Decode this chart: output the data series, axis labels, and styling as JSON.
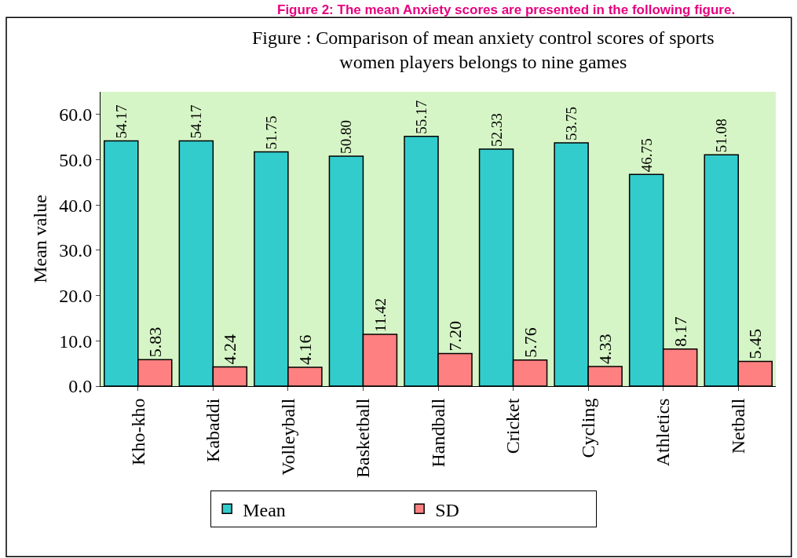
{
  "chart_data": {
    "type": "bar",
    "title": "Figure : Comparison of mean anxiety control scores of sports\nwomen players belongs to nine games",
    "ylabel": "Mean value",
    "annotations": [
      "Figure 2: The mean Anxiety scores are presented in the following figure."
    ],
    "categories": [
      "Kho-kho",
      "Kabaddi",
      "Volleyball",
      "Basketball",
      "Handball",
      "Cricket",
      "Cycling",
      "Athletics",
      "Netball"
    ],
    "series": [
      {
        "name": "Mean",
        "color": "#33cccc",
        "values": [
          54.17,
          54.17,
          51.75,
          50.8,
          55.17,
          52.33,
          53.75,
          46.75,
          51.08
        ],
        "value_labels": [
          "54.17",
          "54.17",
          "51.75",
          "50.80",
          "55.17",
          "52.33",
          "53.75",
          "46.75",
          "51.08"
        ]
      },
      {
        "name": "SD",
        "color": "#ff8080",
        "values": [
          5.83,
          4.24,
          4.16,
          11.42,
          7.2,
          5.76,
          4.33,
          8.17,
          5.45
        ],
        "value_labels": [
          "5.83",
          "4.24",
          "4.16",
          "11.42",
          "7.20",
          "5.76",
          "4.33",
          "8.17",
          "5.45"
        ]
      }
    ],
    "ylim": [
      0,
      65
    ],
    "yticks": [
      {
        "value": 0,
        "label": "0.0"
      },
      {
        "value": 10,
        "label": "10.0"
      },
      {
        "value": 20,
        "label": "20.0"
      },
      {
        "value": 30,
        "label": "30.0"
      },
      {
        "value": 40,
        "label": "40.0"
      },
      {
        "value": 50,
        "label": "50.0"
      },
      {
        "value": 60,
        "label": "60.0"
      }
    ],
    "grid": false,
    "legend": "bottom"
  }
}
